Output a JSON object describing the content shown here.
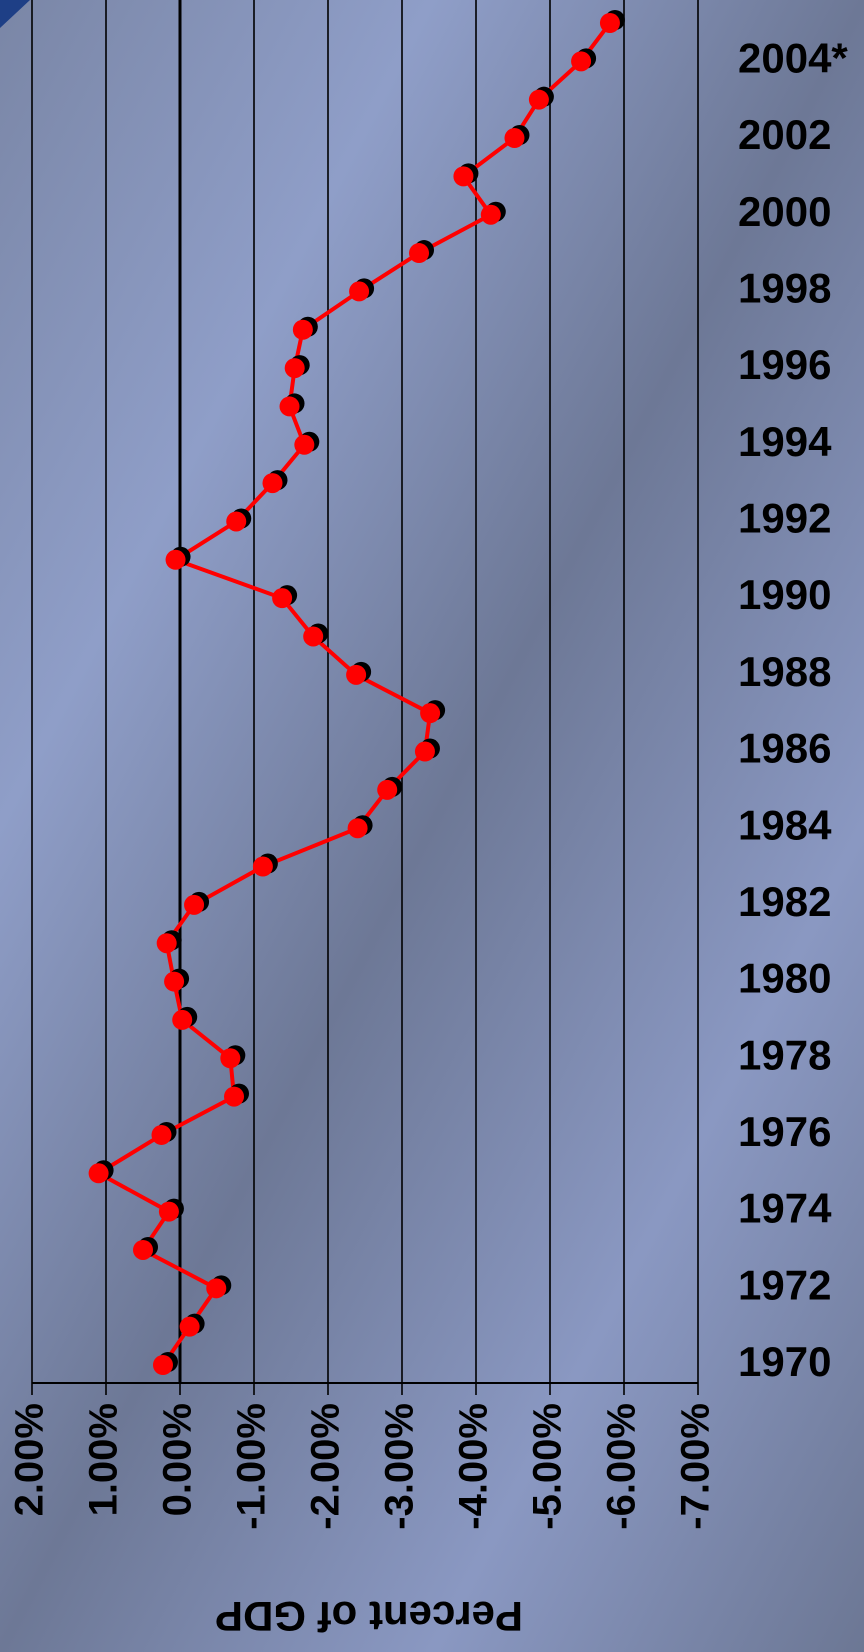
{
  "chart_data": {
    "type": "line",
    "orientation": "horizontal-values",
    "axis_label": "Percent of GDP",
    "categories": [
      "1970",
      null,
      "1972",
      null,
      "1974",
      null,
      "1976",
      null,
      "1978",
      null,
      "1980",
      null,
      "1982",
      null,
      "1984",
      null,
      "1986",
      null,
      "1988",
      null,
      "1990",
      null,
      "1992",
      null,
      "1994",
      null,
      "1996",
      null,
      "1998",
      null,
      "2000",
      null,
      "2002",
      null,
      "2004*",
      null
    ],
    "series": [
      {
        "color": "#ff0000",
        "values": [
          0.23,
          -0.13,
          -0.49,
          0.5,
          0.15,
          1.1,
          0.25,
          -0.73,
          -0.68,
          -0.03,
          0.08,
          0.18,
          -0.19,
          -1.12,
          -2.4,
          -2.8,
          -3.31,
          -3.38,
          -2.38,
          -1.8,
          -1.38,
          0.06,
          -0.76,
          -1.25,
          -1.68,
          -1.48,
          -1.55,
          -1.66,
          -2.42,
          -3.23,
          -4.2,
          -3.83,
          -4.52,
          -4.85,
          -5.42,
          -5.81
        ]
      }
    ],
    "ylim": [
      2,
      -7
    ],
    "yticks": [
      {
        "value": 2,
        "label": "2.00%"
      },
      {
        "value": 1,
        "label": "1.00%"
      },
      {
        "value": 0,
        "label": "0.00%"
      },
      {
        "value": -1,
        "label": "-1.00%"
      },
      {
        "value": -2,
        "label": "-2.00%"
      },
      {
        "value": -3,
        "label": "-3.00%"
      },
      {
        "value": -4,
        "label": "-4.00%"
      },
      {
        "value": -5,
        "label": "-5.00%"
      },
      {
        "value": -6,
        "label": "-6.00%"
      },
      {
        "value": -7,
        "label": "-7.00%"
      }
    ],
    "grid": true
  }
}
